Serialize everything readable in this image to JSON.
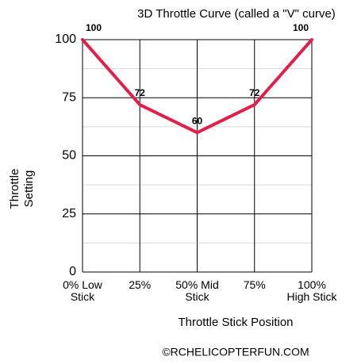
{
  "chart_data": {
    "type": "line",
    "title": "3D Throttle Curve (called a \"V\" curve)",
    "x_label": "Throttle Stick Position",
    "y_label": "Throttle\nSetting",
    "footer": "©RCHELICOPTERFUN.COM",
    "categories": [
      "0% Low\nStick",
      "25%",
      "50% Mid\nStick",
      "75%",
      "100%\nHigh Stick"
    ],
    "series": [
      {
        "name": "Throttle Curve",
        "color": "#e31e4a",
        "values": [
          100,
          72,
          60,
          72,
          100
        ]
      }
    ],
    "ylim": [
      0,
      100
    ],
    "yticks": [
      0,
      25,
      50,
      75,
      100
    ],
    "minor_yticks": [
      12.5,
      37.5,
      62.5,
      87.5
    ],
    "grid": true
  }
}
